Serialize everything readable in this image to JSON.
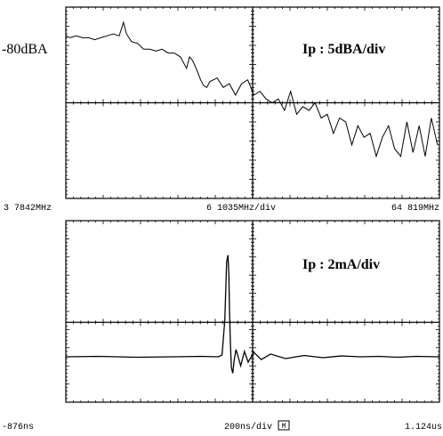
{
  "chart_data": [
    {
      "type": "line",
      "title": "",
      "ref_level_label": "-80dBA",
      "scale_label": "Ip : 5dBA/div",
      "x_start_label": "3 7842MHz",
      "x_div_label": "6 1035MHz/div",
      "x_end_label": "64 819MHz",
      "x_range": [
        3.7842,
        64.819
      ],
      "y_range": [
        -120,
        -70
      ],
      "grid_divisions": {
        "x": 10,
        "y": 10
      },
      "series": [
        {
          "x": [
            3.78,
            4.5,
            5.5,
            6.5,
            7.5,
            8.5,
            9.5,
            10.5,
            11.5,
            12.5,
            13.2,
            13.7,
            14.5,
            15.5,
            16.5,
            17.5,
            18.5,
            19.5,
            20.5,
            21.5,
            22.5,
            23.5,
            24.0,
            24.5,
            25.2,
            25.8,
            26.3,
            26.8,
            27.3,
            28.5,
            29.5,
            30.5,
            31.5,
            32.5,
            33.5,
            34.5,
            35.5,
            36.5,
            37.5,
            38.5,
            39.5,
            40.5,
            41.5,
            42.5,
            43.5,
            44.5,
            45.5,
            46.5,
            47.5,
            48.5,
            49.5,
            50.5,
            51.5,
            52.5,
            53.5,
            54.5,
            55.5,
            56.5,
            57.5,
            58.5,
            59.5,
            60.5,
            61.5,
            62.5,
            63.5,
            64.5
          ],
          "y": [
            -77.5,
            -78,
            -77.5,
            -78,
            -78,
            -78.5,
            -78,
            -77.5,
            -77,
            -77.5,
            -74,
            -77,
            -79,
            -79.5,
            -81,
            -81,
            -81.5,
            -81,
            -82,
            -82,
            -83,
            -86,
            -83,
            -84,
            -86.5,
            -89,
            -90.5,
            -91,
            -89.5,
            -88.5,
            -91,
            -90,
            -93,
            -90,
            -89,
            -93,
            -92,
            -94,
            -95,
            -94,
            -97,
            -92,
            -98,
            -96,
            -97,
            -95,
            -99,
            -98,
            -103,
            -99,
            -100,
            -106,
            -101,
            -104,
            -103,
            -109,
            -104,
            -101,
            -107,
            -109,
            -100,
            -108,
            -101,
            -109,
            -99,
            -106
          ]
        }
      ]
    },
    {
      "type": "line",
      "title": "",
      "scale_label": "Ip : 2mA/div",
      "x_start_label": "-876ns",
      "x_div_label": "200ns/div",
      "marker_label": "M",
      "x_end_label": "1.124us",
      "x_range": [
        -876,
        1124
      ],
      "y_range": [
        -5,
        15
      ],
      "grid_divisions": {
        "x": 10,
        "y": 10
      },
      "series": [
        {
          "x": [
            -876,
            -700,
            -500,
            -300,
            -150,
            -60,
            -40,
            -25,
            -15,
            -8,
            -3,
            0,
            5,
            10,
            18,
            25,
            35,
            45,
            60,
            80,
            100,
            130,
            170,
            220,
            300,
            400,
            500,
            600,
            700,
            800,
            900,
            1000,
            1124
          ],
          "y": [
            0,
            0.05,
            -0.05,
            0,
            0.05,
            0,
            0.2,
            4,
            10.5,
            11.2,
            9,
            5,
            1.5,
            -1.2,
            -1.8,
            -0.4,
            0.8,
            0.1,
            -1,
            0.6,
            -0.6,
            0.5,
            -0.3,
            0.3,
            -0.2,
            0.15,
            -0.1,
            0.1,
            0,
            0.05,
            -0.05,
            0.05,
            0
          ]
        }
      ]
    }
  ]
}
